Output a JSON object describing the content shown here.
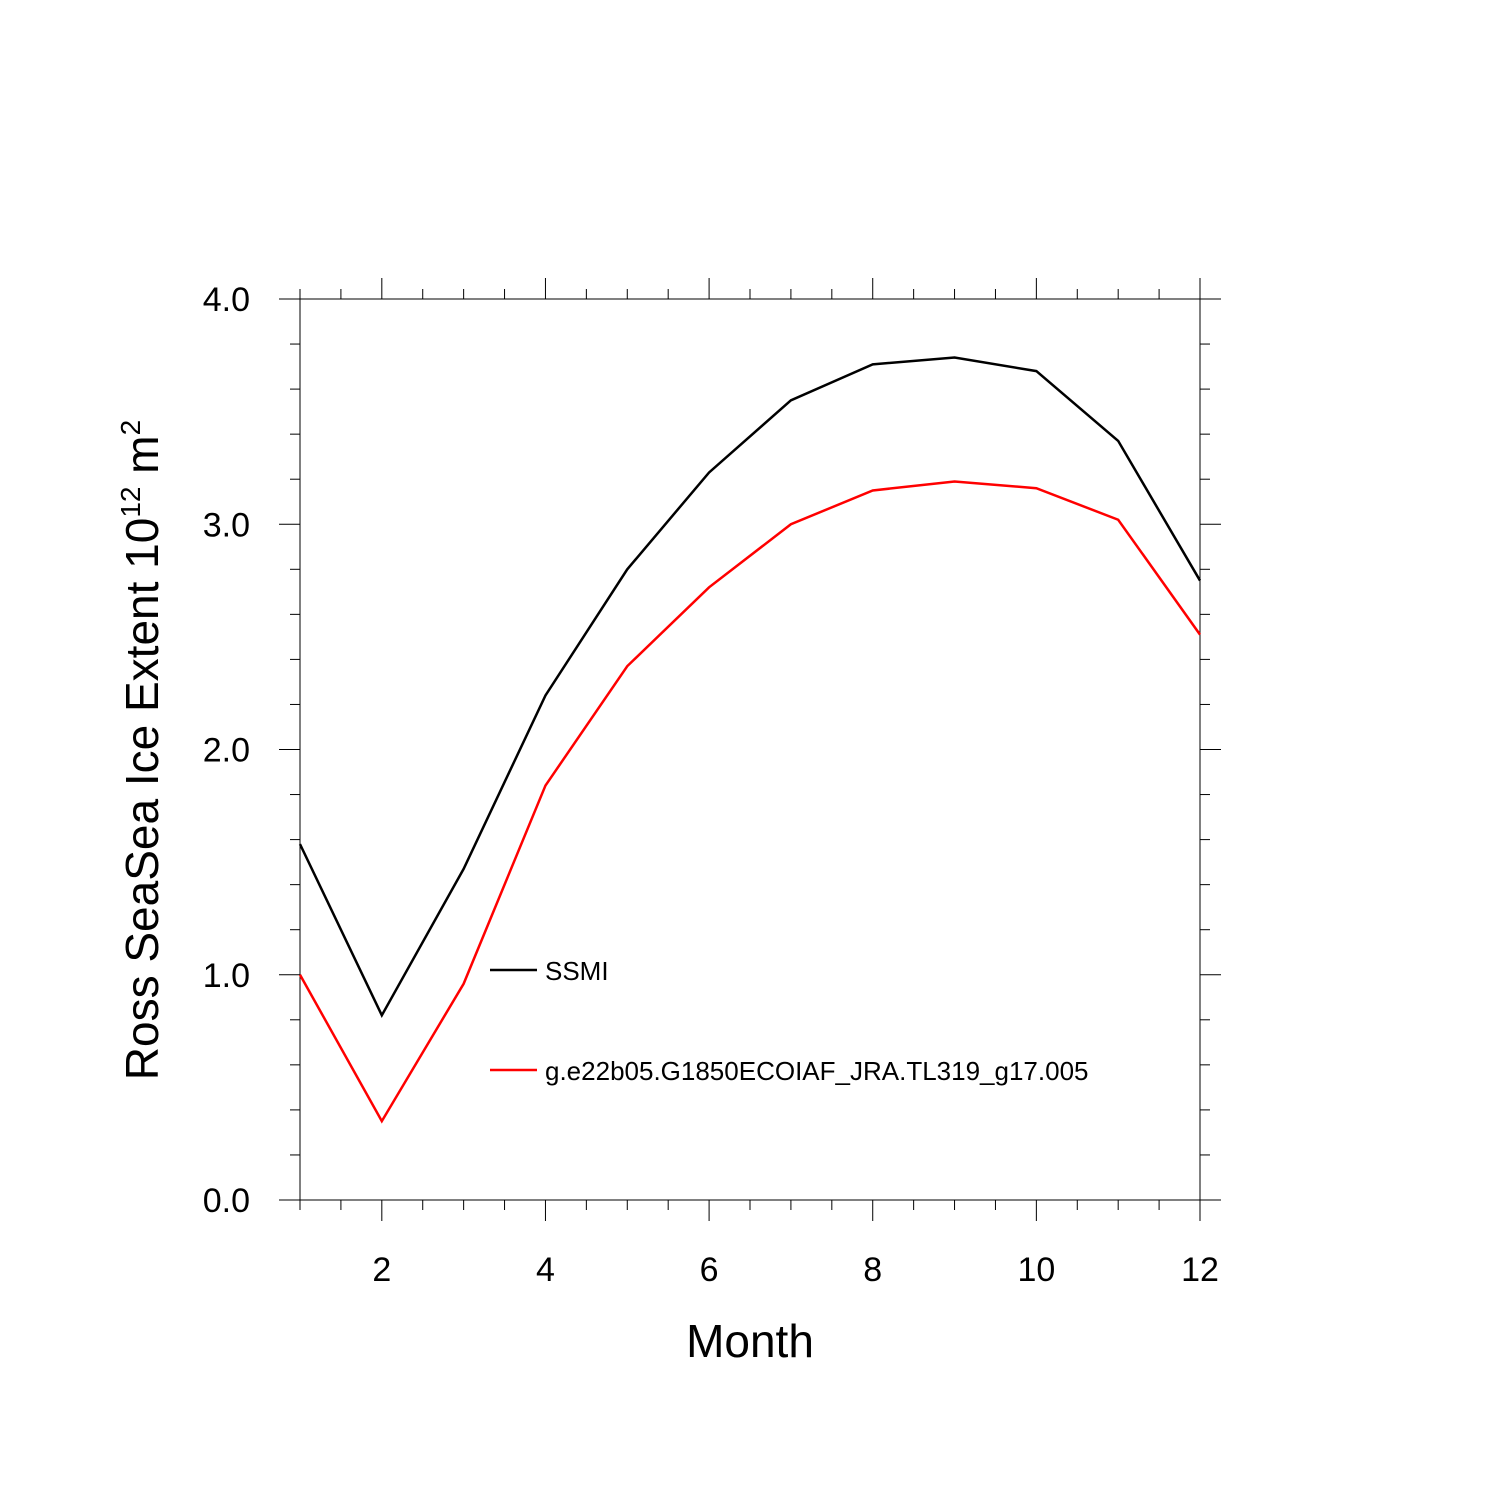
{
  "chart_data": {
    "type": "line",
    "xlabel": "Month",
    "ylabel_main": "Ross SeaSea Ice Extent 10",
    "ylabel_exp1": "12",
    "ylabel_unit": " m",
    "ylabel_exp2": "2",
    "xlim": [
      1,
      12
    ],
    "ylim": [
      0.0,
      4.0
    ],
    "x_ticks": [
      2,
      4,
      6,
      8,
      10,
      12
    ],
    "y_ticks": [
      "0.0",
      "1.0",
      "2.0",
      "3.0",
      "4.0"
    ],
    "x": [
      1,
      2,
      3,
      4,
      5,
      6,
      7,
      8,
      9,
      10,
      11,
      12
    ],
    "series": [
      {
        "name": "SSMI",
        "color": "#000000",
        "values": [
          1.58,
          0.82,
          1.47,
          2.24,
          2.8,
          3.23,
          3.55,
          3.71,
          3.74,
          3.68,
          3.37,
          2.75
        ]
      },
      {
        "name": "g.e22b05.G1850ECOIAF_JRA.TL319_g17.005",
        "color": "#ff0000",
        "values": [
          1.0,
          0.35,
          0.96,
          1.84,
          2.37,
          2.72,
          3.0,
          3.15,
          3.19,
          3.16,
          3.02,
          2.51
        ]
      }
    ],
    "legend_position": "center-right"
  }
}
